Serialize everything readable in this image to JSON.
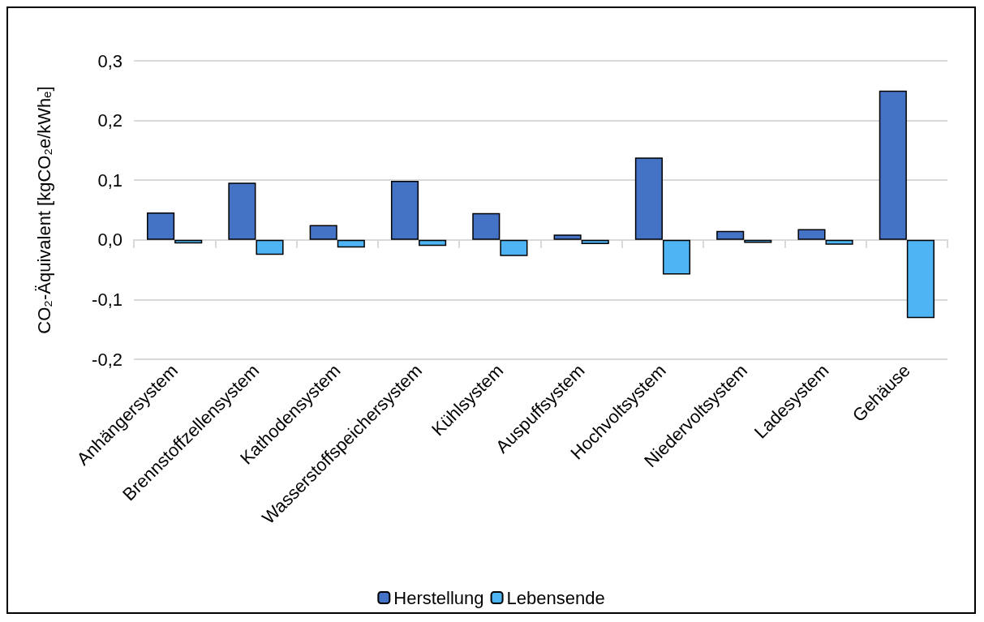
{
  "chart_data": {
    "type": "bar",
    "ylabel": "CO₂-Äquivalent [kgCO₂e/kWhₑ]",
    "categories": [
      "Anhängersystem",
      "Brennstoffzellensystem",
      "Kathodensystem",
      "Wasserstoffspeichersystem",
      "Kühlsystem",
      "Auspuffsystem",
      "Hochvoltsystem",
      "Niedervoltsystem",
      "Ladesystem",
      "Gehäuse"
    ],
    "series": [
      {
        "name": "Herstellung",
        "color": "#4472c4",
        "values": [
          0.046,
          0.096,
          0.025,
          0.099,
          0.045,
          0.009,
          0.138,
          0.015,
          0.018,
          0.25
        ]
      },
      {
        "name": "Lebensende",
        "color": "#4fb4f3",
        "values": [
          -0.006,
          -0.025,
          -0.013,
          -0.01,
          -0.027,
          -0.007,
          -0.058,
          -0.005,
          -0.008,
          -0.131
        ]
      }
    ],
    "ylim": [
      -0.2,
      0.3
    ],
    "yticks": [
      {
        "value": -0.2,
        "label": "-0,2"
      },
      {
        "value": -0.1,
        "label": "-0,1"
      },
      {
        "value": 0,
        "label": "0,0"
      },
      {
        "value": 0.1,
        "label": "0,1"
      },
      {
        "value": 0.2,
        "label": "0,2"
      },
      {
        "value": 0.3,
        "label": "0,3"
      }
    ],
    "grid": "y",
    "legend": "bottom"
  }
}
